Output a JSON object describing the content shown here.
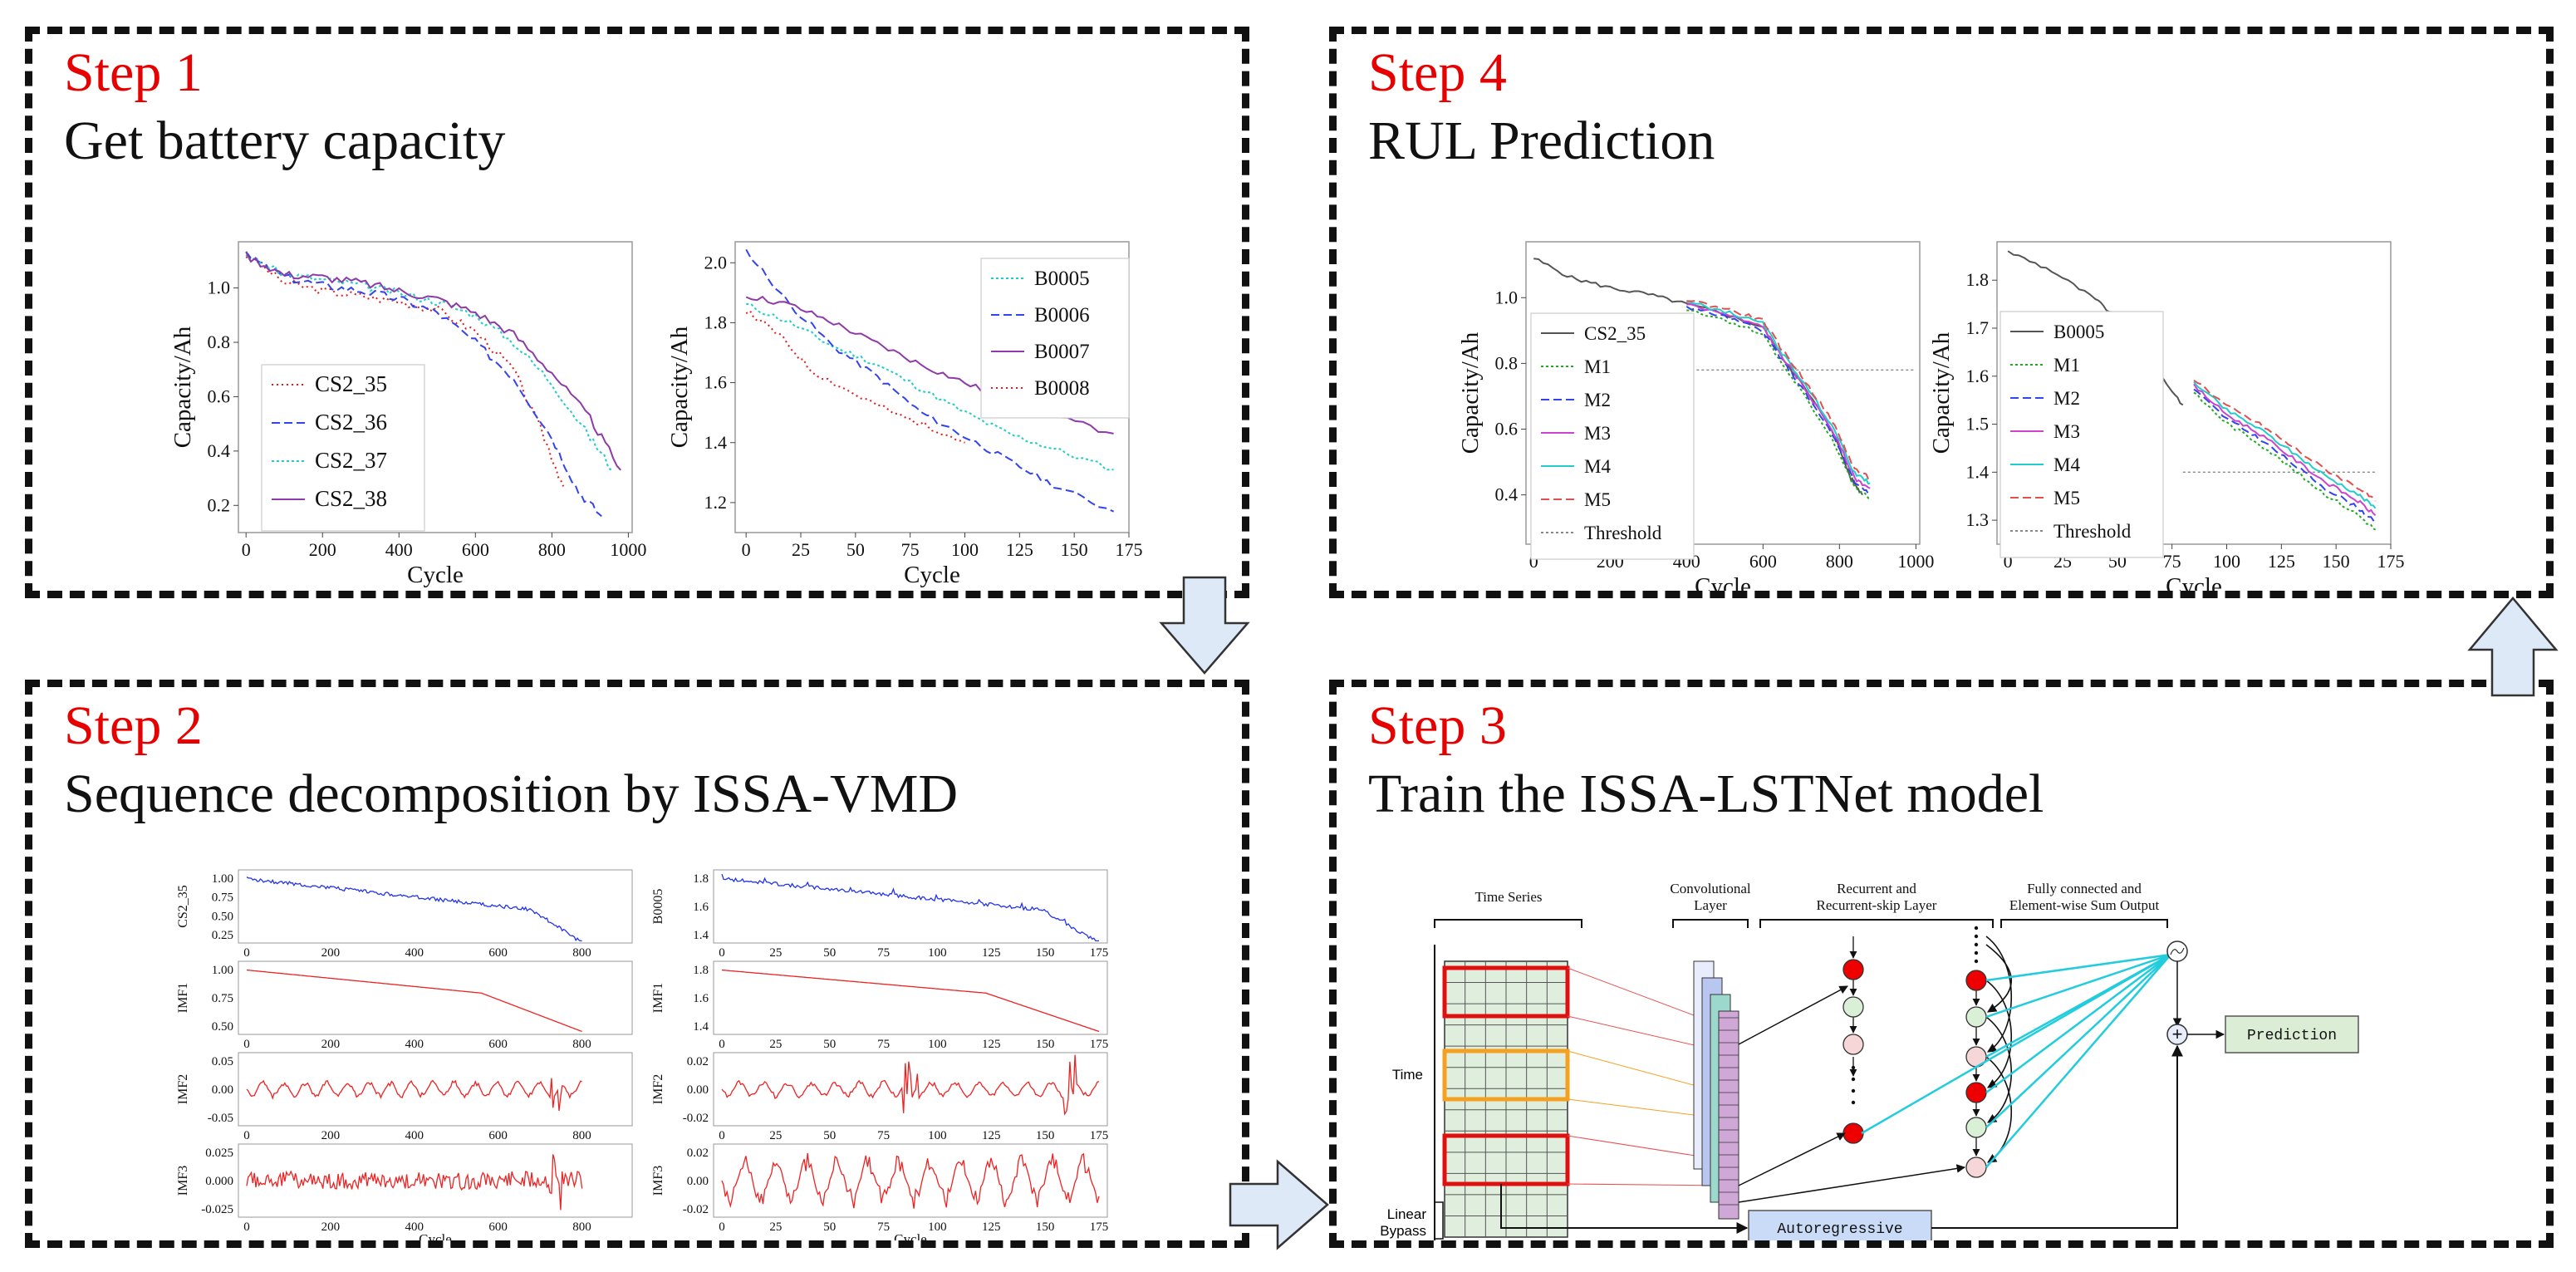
{
  "steps": {
    "step1": {
      "label": "Step 1",
      "title": "Get battery capacity"
    },
    "step2": {
      "label": "Step 2",
      "title": "Sequence decomposition by ISSA-VMD"
    },
    "step3": {
      "label": "Step 3",
      "title": "Train the ISSA-LSTNet  model"
    },
    "step4": {
      "label": "Step 4",
      "title": "RUL Prediction"
    }
  },
  "colors": {
    "step": "#e60000",
    "border": "#111111",
    "arrow_fill": "#dde9f7",
    "arrow_stroke": "#333333"
  },
  "chart_data": [
    {
      "id": "step1-left",
      "type": "line",
      "xlabel": "Cycle",
      "ylabel": "Capacity/Ah",
      "xlim": [
        -20,
        1010
      ],
      "ylim": [
        0.1,
        1.17
      ],
      "xticks": [
        "0",
        "200",
        "400",
        "600",
        "800",
        "1000"
      ],
      "yticks": [
        "0.2",
        "0.4",
        "0.6",
        "0.8",
        "1.0"
      ],
      "series": [
        {
          "name": "CS2_35",
          "color": "#e31a1c",
          "dash": "dotted-dot",
          "points": [
            [
              0,
              1.12
            ],
            [
              100,
              1.02
            ],
            [
              200,
              0.99
            ],
            [
              300,
              0.97
            ],
            [
              400,
              0.95
            ],
            [
              500,
              0.92
            ],
            [
              600,
              0.84
            ],
            [
              700,
              0.7
            ],
            [
              780,
              0.45
            ],
            [
              830,
              0.27
            ]
          ]
        },
        {
          "name": "CS2_36",
          "color": "#3344ee",
          "dash": "dashed",
          "points": [
            [
              0,
              1.12
            ],
            [
              100,
              1.04
            ],
            [
              200,
              1.01
            ],
            [
              300,
              0.99
            ],
            [
              400,
              0.96
            ],
            [
              500,
              0.91
            ],
            [
              600,
              0.8
            ],
            [
              700,
              0.67
            ],
            [
              800,
              0.45
            ],
            [
              870,
              0.25
            ],
            [
              930,
              0.16
            ]
          ]
        },
        {
          "name": "CS2_37",
          "color": "#22cccc",
          "dash": "dotted",
          "points": [
            [
              0,
              1.12
            ],
            [
              100,
              1.05
            ],
            [
              200,
              1.03
            ],
            [
              300,
              1.01
            ],
            [
              400,
              0.98
            ],
            [
              500,
              0.95
            ],
            [
              600,
              0.9
            ],
            [
              700,
              0.8
            ],
            [
              800,
              0.65
            ],
            [
              900,
              0.45
            ],
            [
              960,
              0.33
            ]
          ]
        },
        {
          "name": "CS2_38",
          "color": "#8e3aa8",
          "dash": "solid",
          "points": [
            [
              0,
              1.12
            ],
            [
              100,
              1.05
            ],
            [
              200,
              1.04
            ],
            [
              300,
              1.02
            ],
            [
              400,
              0.99
            ],
            [
              500,
              0.96
            ],
            [
              600,
              0.91
            ],
            [
              700,
              0.83
            ],
            [
              800,
              0.69
            ],
            [
              900,
              0.52
            ],
            [
              980,
              0.33
            ]
          ]
        }
      ]
    },
    {
      "id": "step1-right",
      "type": "line",
      "xlabel": "Cycle",
      "ylabel": "Capacity/Ah",
      "xlim": [
        -5,
        175
      ],
      "ylim": [
        1.1,
        2.07
      ],
      "xticks": [
        "0",
        "25",
        "50",
        "75",
        "100",
        "125",
        "150",
        "175"
      ],
      "yticks": [
        "1.2",
        "1.4",
        "1.6",
        "1.8",
        "2.0"
      ],
      "series": [
        {
          "name": "B0005",
          "color": "#22cccc",
          "dash": "dotted",
          "points": [
            [
              0,
              1.86
            ],
            [
              20,
              1.8
            ],
            [
              40,
              1.72
            ],
            [
              60,
              1.66
            ],
            [
              80,
              1.58
            ],
            [
              100,
              1.5
            ],
            [
              120,
              1.43
            ],
            [
              140,
              1.38
            ],
            [
              168,
              1.31
            ]
          ]
        },
        {
          "name": "B0006",
          "color": "#3344ee",
          "dash": "dashed",
          "points": [
            [
              0,
              2.04
            ],
            [
              20,
              1.86
            ],
            [
              40,
              1.72
            ],
            [
              60,
              1.62
            ],
            [
              80,
              1.5
            ],
            [
              100,
              1.42
            ],
            [
              120,
              1.34
            ],
            [
              140,
              1.26
            ],
            [
              168,
              1.17
            ]
          ]
        },
        {
          "name": "B0007",
          "color": "#8e3aa8",
          "dash": "solid",
          "points": [
            [
              0,
              1.89
            ],
            [
              20,
              1.86
            ],
            [
              40,
              1.8
            ],
            [
              60,
              1.73
            ],
            [
              80,
              1.66
            ],
            [
              100,
              1.6
            ],
            [
              120,
              1.54
            ],
            [
              140,
              1.49
            ],
            [
              168,
              1.43
            ]
          ]
        },
        {
          "name": "B0008",
          "color": "#e31a1c",
          "dash": "dotted-dot",
          "points": [
            [
              0,
              1.84
            ],
            [
              15,
              1.76
            ],
            [
              30,
              1.64
            ],
            [
              50,
              1.56
            ],
            [
              70,
              1.49
            ],
            [
              85,
              1.45
            ],
            [
              100,
              1.4
            ]
          ]
        }
      ]
    },
    {
      "id": "step2-decomp",
      "type": "line",
      "xlabel": "Cycle",
      "left_xticks": [
        "0",
        "200",
        "400",
        "600",
        "800"
      ],
      "right_xticks": [
        "0",
        "25",
        "50",
        "75",
        "100",
        "125",
        "150",
        "175"
      ],
      "panels": [
        {
          "ylabel": "CS2_35",
          "yticks": [
            "1.00",
            "0.75",
            "0.50",
            "0.25"
          ],
          "color": "#2233ee"
        },
        {
          "ylabel": "IMF1",
          "yticks": [
            "1.00",
            "0.75",
            "0.50"
          ],
          "color": "#ee2222"
        },
        {
          "ylabel": "IMF2",
          "yticks": [
            "0.05",
            "0.00",
            "-0.05"
          ],
          "color": "#ee2222"
        },
        {
          "ylabel": "IMF3",
          "yticks": [
            "0.025",
            "0.000",
            "-0.025"
          ],
          "color": "#ee2222"
        },
        {
          "ylabel": "B0005",
          "yticks": [
            "1.8",
            "1.6",
            "1.4"
          ],
          "color": "#2233ee"
        },
        {
          "ylabel": "IMF1",
          "yticks": [
            "1.8",
            "1.6",
            "1.4"
          ],
          "color": "#ee2222"
        },
        {
          "ylabel": "IMF2",
          "yticks": [
            "0.02",
            "0.00",
            "-0.02"
          ],
          "color": "#ee2222"
        },
        {
          "ylabel": "IMF3",
          "yticks": [
            "0.02",
            "0.00",
            "-0.02"
          ],
          "color": "#ee2222"
        }
      ]
    },
    {
      "id": "step4-left",
      "type": "line",
      "xlabel": "Cycle",
      "ylabel": "Capacity/Ah",
      "xlim": [
        -20,
        1010
      ],
      "ylim": [
        0.25,
        1.17
      ],
      "threshold": 0.78,
      "xticks": [
        "0",
        "200",
        "400",
        "600",
        "800",
        "1000"
      ],
      "yticks": [
        "0.4",
        "0.6",
        "0.8",
        "1.0"
      ],
      "series": [
        {
          "name": "CS2_35",
          "color": "#555555",
          "dash": "solid"
        },
        {
          "name": "M1",
          "color": "#22aa22",
          "dash": "dotted"
        },
        {
          "name": "M2",
          "color": "#3344ee",
          "dash": "dashed"
        },
        {
          "name": "M3",
          "color": "#cc44cc",
          "dash": "solid"
        },
        {
          "name": "M4",
          "color": "#22cccc",
          "dash": "solid"
        },
        {
          "name": "M5",
          "color": "#e05050",
          "dash": "dashed"
        },
        {
          "name": "Threshold",
          "color": "#888888",
          "dash": "dotted"
        }
      ]
    },
    {
      "id": "step4-right",
      "type": "line",
      "xlabel": "Cycle",
      "ylabel": "Capacity/Ah",
      "xlim": [
        -5,
        175
      ],
      "ylim": [
        1.25,
        1.88
      ],
      "threshold": 1.4,
      "xticks": [
        "0",
        "25",
        "50",
        "75",
        "100",
        "125",
        "150",
        "175"
      ],
      "yticks": [
        "1.3",
        "1.4",
        "1.5",
        "1.6",
        "1.7",
        "1.8"
      ],
      "series": [
        {
          "name": "B0005",
          "color": "#555555",
          "dash": "solid"
        },
        {
          "name": "M1",
          "color": "#22aa22",
          "dash": "dotted"
        },
        {
          "name": "M2",
          "color": "#3344ee",
          "dash": "dashed"
        },
        {
          "name": "M3",
          "color": "#cc44cc",
          "dash": "solid"
        },
        {
          "name": "M4",
          "color": "#22cccc",
          "dash": "solid"
        },
        {
          "name": "M5",
          "color": "#e05050",
          "dash": "dashed"
        },
        {
          "name": "Threshold",
          "color": "#888888",
          "dash": "dotted"
        }
      ]
    }
  ],
  "lstnet": {
    "header_time_series": "Time Series",
    "header_conv": "Convolutional",
    "header_conv2": "Layer",
    "header_rec": "Recurrent and",
    "header_rec2": "Recurrent-skip Layer",
    "header_fc": "Fully connected and",
    "header_fc2": "Element-wise Sum Output",
    "time_label": "Time",
    "linear_bypass": "Linear",
    "linear_bypass2": "Bypass",
    "autoregressive": "Autoregressive",
    "prediction": "Prediction",
    "sum_symbol": "+"
  }
}
